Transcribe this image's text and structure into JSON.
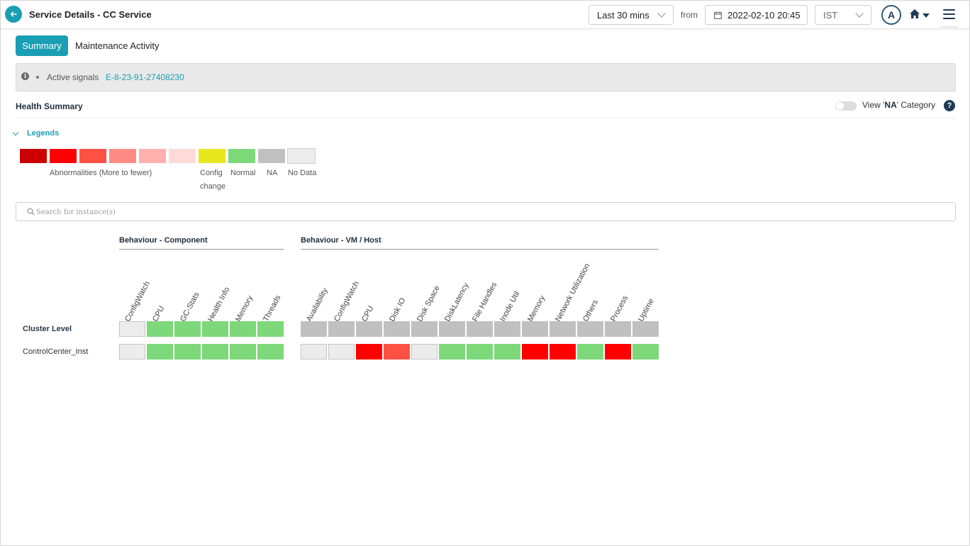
{
  "header": {
    "title": "Service Details - CC Service",
    "time_range": "Last 30 mins",
    "from_label": "from",
    "from_date": "2022-02-10 20:45",
    "timezone": "IST",
    "avatar_initial": "A"
  },
  "tabs": [
    {
      "label": "Summary",
      "active": true
    },
    {
      "label": "Maintenance Activity",
      "active": false
    }
  ],
  "signals": {
    "label": "Active signals",
    "link": "E-8-23-91-27408230"
  },
  "health_summary": {
    "title": "Health Summary",
    "view_na_prefix": "View '",
    "view_na_bold": "NA",
    "view_na_suffix": "' Category",
    "view_na_enabled": false,
    "help": "?"
  },
  "legends": {
    "toggle_label": "Legends",
    "swatches": [
      "#cc0000",
      "#ff0000",
      "#ff5044",
      "#ff8a84",
      "#ffb1ae",
      "#ffdad9",
      "#e6e61c",
      "#7dd87a",
      "#c0c0c0",
      "#ececec"
    ],
    "abnormal_label": "Abnormalities (More to fewer)",
    "config_label": "Config change",
    "normal_label": "Normal",
    "na_label": "NA",
    "nodata_label": "No Data"
  },
  "search": {
    "placeholder": "Search for instance(s)"
  },
  "matrix": {
    "colors": {
      "normal": "#7dd87a",
      "critical": "#ff0000",
      "high": "#ff5044",
      "na": "#c0c0c0",
      "nodata": "#ececec"
    },
    "groups": [
      {
        "title": "Behaviour - Component",
        "columns": [
          "ConfigWatch",
          "CPU",
          "GC-Stats",
          "Health Info",
          "Memory",
          "Threads"
        ]
      },
      {
        "title": "Behaviour - VM / Host",
        "columns": [
          "Availability",
          "ConfigWatch",
          "CPU",
          "Disk IO",
          "Disk Space",
          "DiskLatency",
          "File Handles",
          "Inode Util",
          "Memory",
          "Network Utilization",
          "Others",
          "Process",
          "Uptime"
        ]
      }
    ],
    "rows": [
      {
        "label": "Cluster Level",
        "component": [
          "nodata",
          "normal",
          "normal",
          "normal",
          "normal",
          "normal"
        ],
        "host": [
          "na",
          "na",
          "na",
          "na",
          "na",
          "na",
          "na",
          "na",
          "na",
          "na",
          "na",
          "na",
          "na"
        ]
      },
      {
        "label": "ControlCenter_Inst",
        "component": [
          "nodata",
          "normal",
          "normal",
          "normal",
          "normal",
          "normal"
        ],
        "host": [
          "nodata",
          "nodata",
          "critical",
          "high",
          "nodata",
          "normal",
          "normal",
          "normal",
          "critical",
          "critical",
          "normal",
          "critical",
          "normal"
        ]
      }
    ]
  }
}
